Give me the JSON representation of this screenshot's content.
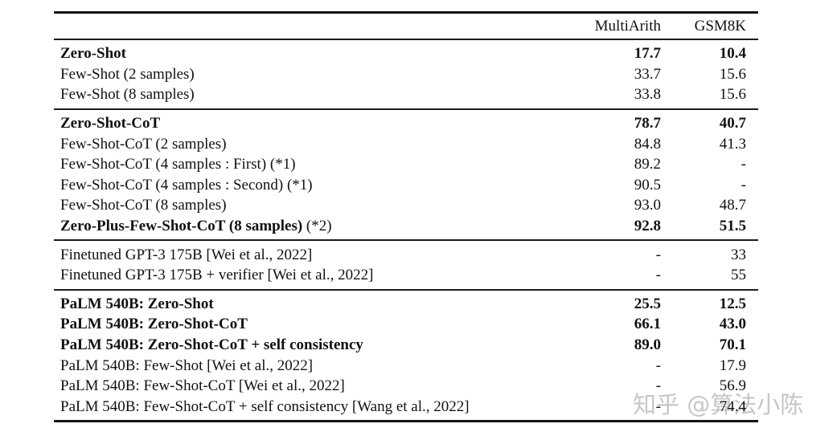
{
  "table": {
    "columns": {
      "multiarith": "MultiArith",
      "gsm8k": "GSM8K"
    },
    "sections": [
      {
        "rows": [
          {
            "label": "Zero-Shot",
            "multiarith": "17.7",
            "gsm8k": "10.4",
            "bold": true
          },
          {
            "label": "Few-Shot (2 samples)",
            "multiarith": "33.7",
            "gsm8k": "15.6",
            "bold": false
          },
          {
            "label": "Few-Shot (8 samples)",
            "multiarith": "33.8",
            "gsm8k": "15.6",
            "bold": false
          }
        ]
      },
      {
        "rows": [
          {
            "label": "Zero-Shot-CoT",
            "multiarith": "78.7",
            "gsm8k": "40.7",
            "bold": true
          },
          {
            "label": "Few-Shot-CoT (2 samples)",
            "multiarith": "84.8",
            "gsm8k": "41.3",
            "bold": false
          },
          {
            "label": "Few-Shot-CoT (4 samples : First) (*1)",
            "multiarith": "89.2",
            "gsm8k": "-",
            "bold": false
          },
          {
            "label": "Few-Shot-CoT (4 samples : Second) (*1)",
            "multiarith": "90.5",
            "gsm8k": "-",
            "bold": false
          },
          {
            "label": "Few-Shot-CoT (8 samples)",
            "multiarith": "93.0",
            "gsm8k": "48.7",
            "bold": false
          },
          {
            "label": "Zero-Plus-Few-Shot-CoT (8 samples)",
            "suffix": " (*2)",
            "multiarith": "92.8",
            "gsm8k": "51.5",
            "bold": true
          }
        ]
      },
      {
        "rows": [
          {
            "label": "Finetuned GPT-3 175B [Wei et al., 2022]",
            "multiarith": "-",
            "gsm8k": "33",
            "bold": false
          },
          {
            "label": "Finetuned GPT-3 175B + verifier [Wei et al., 2022]",
            "multiarith": "-",
            "gsm8k": "55",
            "bold": false
          }
        ]
      },
      {
        "rows": [
          {
            "label": "PaLM 540B: Zero-Shot",
            "multiarith": "25.5",
            "gsm8k": "12.5",
            "bold": true
          },
          {
            "label": "PaLM 540B: Zero-Shot-CoT",
            "multiarith": "66.1",
            "gsm8k": "43.0",
            "bold": true
          },
          {
            "label": "PaLM 540B: Zero-Shot-CoT + self consistency",
            "multiarith": "89.0",
            "gsm8k": "70.1",
            "bold": true
          },
          {
            "label": "PaLM 540B: Few-Shot [Wei et al., 2022]",
            "multiarith": "-",
            "gsm8k": "17.9",
            "bold": false
          },
          {
            "label": "PaLM 540B: Few-Shot-CoT [Wei et al., 2022]",
            "multiarith": "-",
            "gsm8k": "56.9",
            "bold": false
          },
          {
            "label": "PaLM 540B: Few-Shot-CoT + self consistency [Wang et al., 2022]",
            "multiarith": "-",
            "gsm8k": "74.4",
            "bold": false
          }
        ]
      }
    ]
  },
  "watermark": {
    "text": "知乎 @算法小陈",
    "color": "#c6c6c6"
  }
}
